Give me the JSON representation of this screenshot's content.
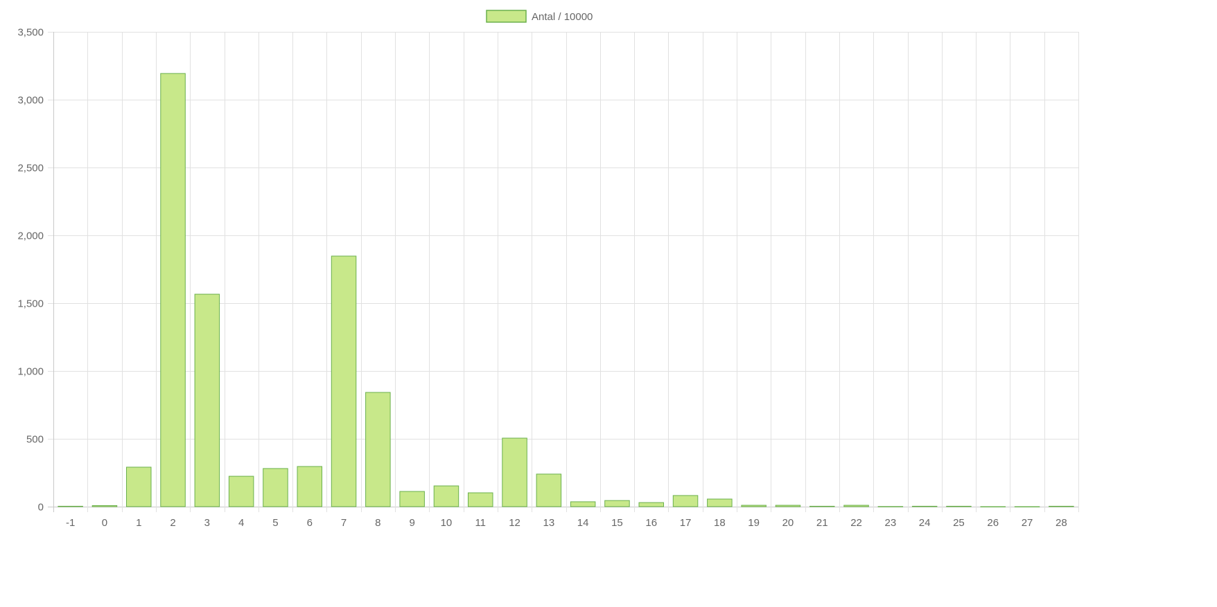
{
  "chart_data": {
    "type": "bar",
    "title": "",
    "xlabel": "",
    "ylabel": "",
    "categories": [
      "-1",
      "0",
      "1",
      "2",
      "3",
      "4",
      "5",
      "6",
      "7",
      "8",
      "9",
      "10",
      "11",
      "12",
      "13",
      "14",
      "15",
      "16",
      "17",
      "18",
      "19",
      "20",
      "21",
      "22",
      "23",
      "24",
      "25",
      "26",
      "27",
      "28"
    ],
    "series": [
      {
        "name": "Antal / 10000",
        "values": [
          3,
          8,
          291,
          3193,
          1566,
          224,
          281,
          296,
          1847,
          842,
          112,
          153,
          102,
          505,
          240,
          36,
          45,
          30,
          82,
          56,
          10,
          10,
          3,
          10,
          1,
          3,
          3,
          0,
          0,
          3
        ]
      }
    ],
    "ylim": [
      0,
      3500
    ],
    "yticks": [
      0,
      500,
      1000,
      1500,
      2000,
      2500,
      3000,
      3500
    ],
    "ytick_labels": [
      "0",
      "500",
      "1,000",
      "1,500",
      "2,000",
      "2,500",
      "3,000",
      "3,500"
    ],
    "grid": true,
    "legend_position": "top",
    "colors": {
      "bar_fill": "#c8e88a",
      "bar_border": "#6ab04c",
      "grid": "#e1e1e1",
      "axis": "#c8c8c8",
      "text": "#666666"
    }
  }
}
